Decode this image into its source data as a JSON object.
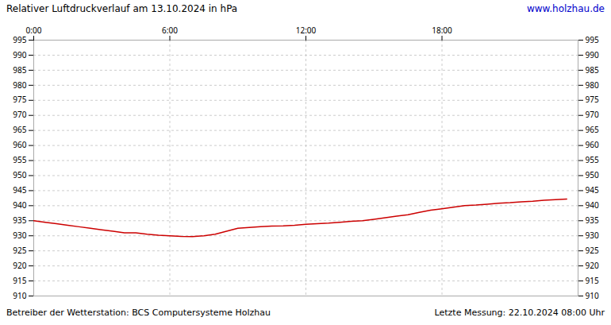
{
  "chart_data": {
    "type": "line",
    "title": "Relativer Luftdruckverlauf am 13.10.2024 in hPa",
    "annotations": [
      "www.holzhau.de",
      "Betreiber der Wetterstation: BCS Computersysteme Holzhau",
      "Letzte Messung: 22.10.2024 08:00 Uhr"
    ],
    "x": [
      0.0,
      0.5,
      1.0,
      1.5,
      2.0,
      2.5,
      3.0,
      3.5,
      4.0,
      4.5,
      5.0,
      5.5,
      6.0,
      6.5,
      7.0,
      7.5,
      8.0,
      8.5,
      9.0,
      9.5,
      10.0,
      10.5,
      11.0,
      11.5,
      12.0,
      12.5,
      13.0,
      13.5,
      14.0,
      14.5,
      15.0,
      15.5,
      16.0,
      16.5,
      17.0,
      17.5,
      18.0,
      18.5,
      19.0,
      19.5,
      20.0,
      20.5,
      21.0,
      21.5,
      22.0,
      22.5,
      23.0,
      23.5
    ],
    "values": [
      935.0,
      934.5,
      934.0,
      933.5,
      933.0,
      932.5,
      932.0,
      931.5,
      931.0,
      931.0,
      930.5,
      930.2,
      930.0,
      929.8,
      929.7,
      930.0,
      930.5,
      931.5,
      932.5,
      932.8,
      933.0,
      933.2,
      933.3,
      933.5,
      933.8,
      934.0,
      934.2,
      934.5,
      934.8,
      935.0,
      935.5,
      936.0,
      936.5,
      937.0,
      937.8,
      938.5,
      939.0,
      939.5,
      940.0,
      940.2,
      940.5,
      940.8,
      941.0,
      941.3,
      941.5,
      941.8,
      942.0,
      942.2
    ],
    "color": "#cc0000",
    "xlim": [
      0,
      24
    ],
    "xticks": [
      {
        "value": 0,
        "label": "0:00"
      },
      {
        "value": 6,
        "label": "6:00"
      },
      {
        "value": 12,
        "label": "12:00"
      },
      {
        "value": 18,
        "label": "18:00"
      }
    ],
    "ylim": [
      910,
      995
    ],
    "yticks": [
      910,
      915,
      920,
      925,
      930,
      935,
      940,
      945,
      950,
      955,
      960,
      965,
      970,
      975,
      980,
      985,
      990,
      995
    ],
    "grid": true
  }
}
